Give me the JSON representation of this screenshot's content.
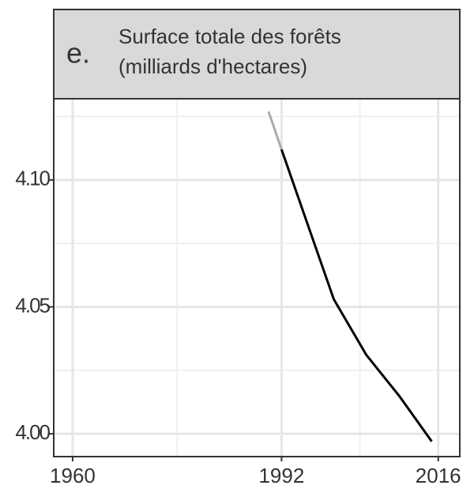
{
  "chart_data": {
    "type": "line",
    "panel_label": "e.",
    "title": [
      "Surface totale des forêts",
      "(milliards d'hectares)"
    ],
    "series": [
      {
        "color": "#aaaaaa",
        "x": [
          1990,
          1992
        ],
        "values": [
          4.127,
          4.112
        ]
      },
      {
        "color": "#000000",
        "x": [
          1992,
          2000,
          2005,
          2010,
          2015
        ],
        "values": [
          4.112,
          4.053,
          4.031,
          4.015,
          3.997
        ]
      }
    ],
    "xlim": [
      1957.1,
      2019.3
    ],
    "xticks": [
      1960,
      1992,
      2016
    ],
    "xminorticks": [
      1976,
      2004
    ],
    "ylim": [
      3.991,
      4.132
    ],
    "yticks": [
      {
        "value": 4,
        "label": "4.00"
      },
      4.05,
      {
        "value": 4.1,
        "label": "4.10"
      }
    ],
    "yminorticks": [
      4.025,
      4.075,
      4.125
    ],
    "grid": true,
    "header_color": "#d9d9d9"
  }
}
